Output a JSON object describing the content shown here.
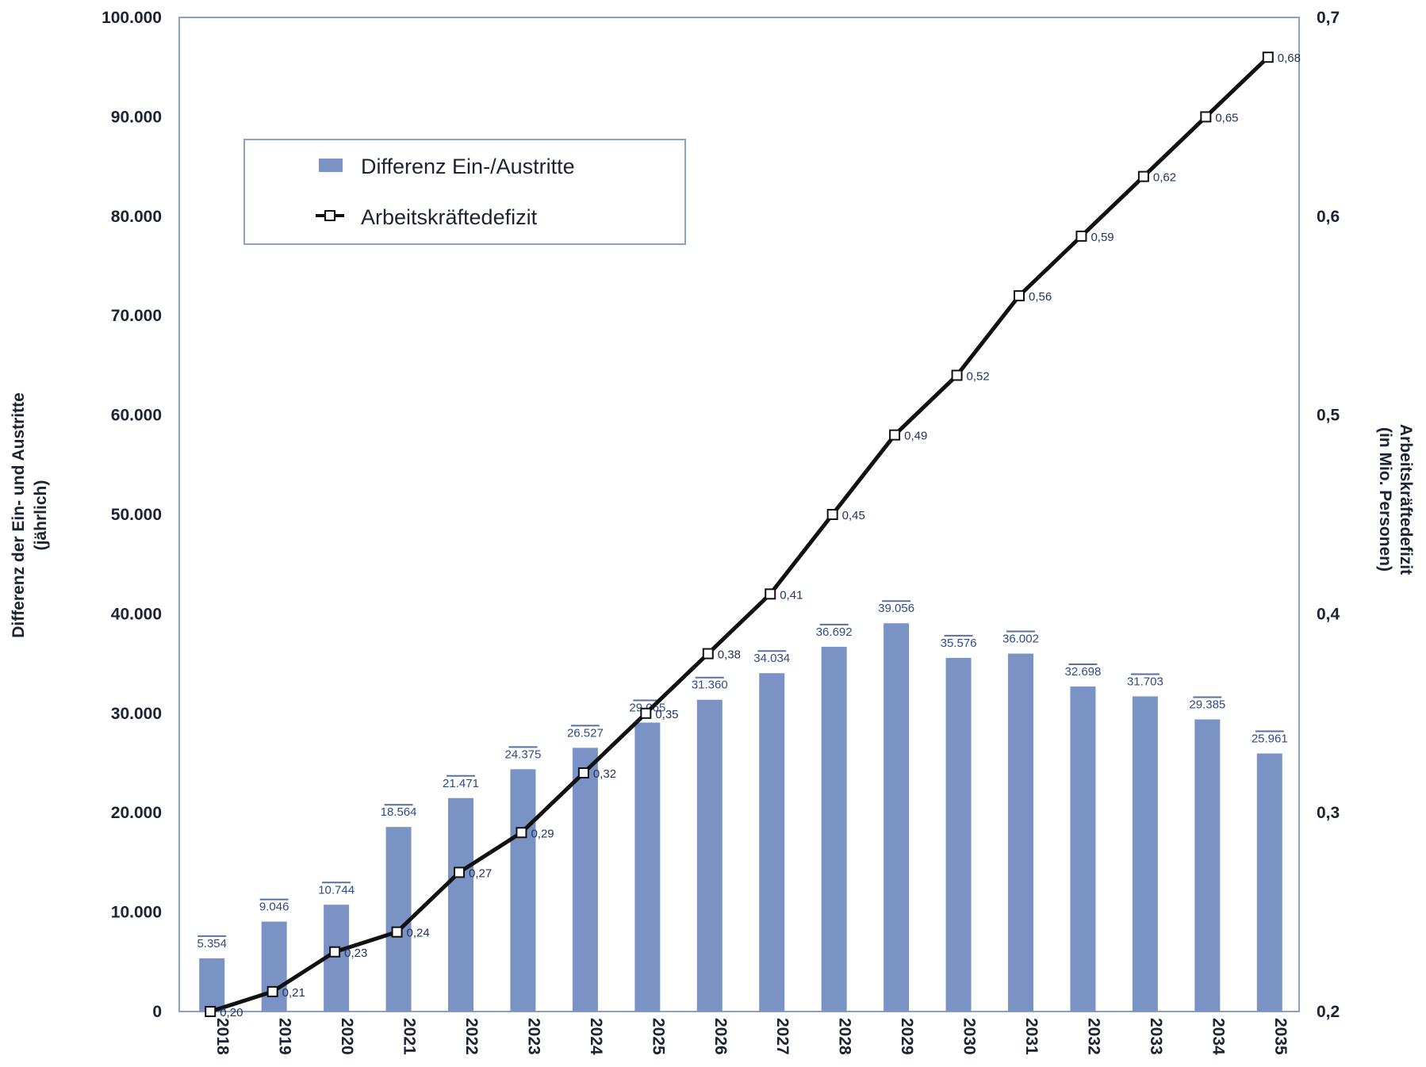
{
  "chart_data": {
    "type": "bar",
    "categories": [
      "2018",
      "2019",
      "2020",
      "2021",
      "2022",
      "2023",
      "2024",
      "2025",
      "2026",
      "2027",
      "2028",
      "2029",
      "2030",
      "2031",
      "2032",
      "2033",
      "2034",
      "2035"
    ],
    "series": [
      {
        "name": "Differenz Ein-/Austritte",
        "type": "bar",
        "axis": "left",
        "color": "#7b93c4",
        "values": [
          5354,
          9046,
          10744,
          18564,
          21471,
          24375,
          26527,
          29065,
          31360,
          34034,
          36692,
          39056,
          35576,
          36002,
          32698,
          31703,
          29385,
          25961
        ],
        "labels": [
          "5.354",
          "9.046",
          "10.744",
          "18.564",
          "21.471",
          "24.375",
          "26.527",
          "29.065",
          "31.360",
          "34.034",
          "36.692",
          "39.056",
          "35.576",
          "36.002",
          "32.698",
          "31.703",
          "29.385",
          "25.961"
        ]
      },
      {
        "name": "Arbeitskräftedefizit",
        "type": "line",
        "axis": "right",
        "color": "#111111",
        "values": [
          0.2,
          0.21,
          0.23,
          0.24,
          0.27,
          0.29,
          0.32,
          0.35,
          0.38,
          0.41,
          0.45,
          0.49,
          0.52,
          0.56,
          0.59,
          0.62,
          0.65,
          0.68
        ],
        "labels": [
          "0,20",
          "0,21",
          "0,23",
          "0,24",
          "0,27",
          "0,29",
          "0,32",
          "0,35",
          "0,38",
          "0,41",
          "0,45",
          "0,49",
          "0,52",
          "0,56",
          "0,59",
          "0,62",
          "0,65",
          "0,68"
        ]
      }
    ],
    "y_left": {
      "label_line1": "Differenz der Ein- und Austritte",
      "label_line2": "(jährlich)",
      "ylim": [
        0,
        100000
      ],
      "ticks": [
        "0",
        "10.000",
        "20.000",
        "30.000",
        "40.000",
        "50.000",
        "60.000",
        "70.000",
        "80.000",
        "90.000",
        "100.000"
      ]
    },
    "y_right": {
      "label_line1": "Arbeitskräftedefizit",
      "label_line2": "(in Mio. Personen)",
      "ylim": [
        0.2,
        0.7
      ],
      "ticks": [
        "0,2",
        "0,3",
        "0,4",
        "0,5",
        "0,6",
        "0,7"
      ]
    },
    "legend": {
      "placement": "top-left",
      "items": [
        "Differenz Ein-/Austritte",
        "Arbeitskräftedefizit"
      ]
    },
    "grid": false
  }
}
